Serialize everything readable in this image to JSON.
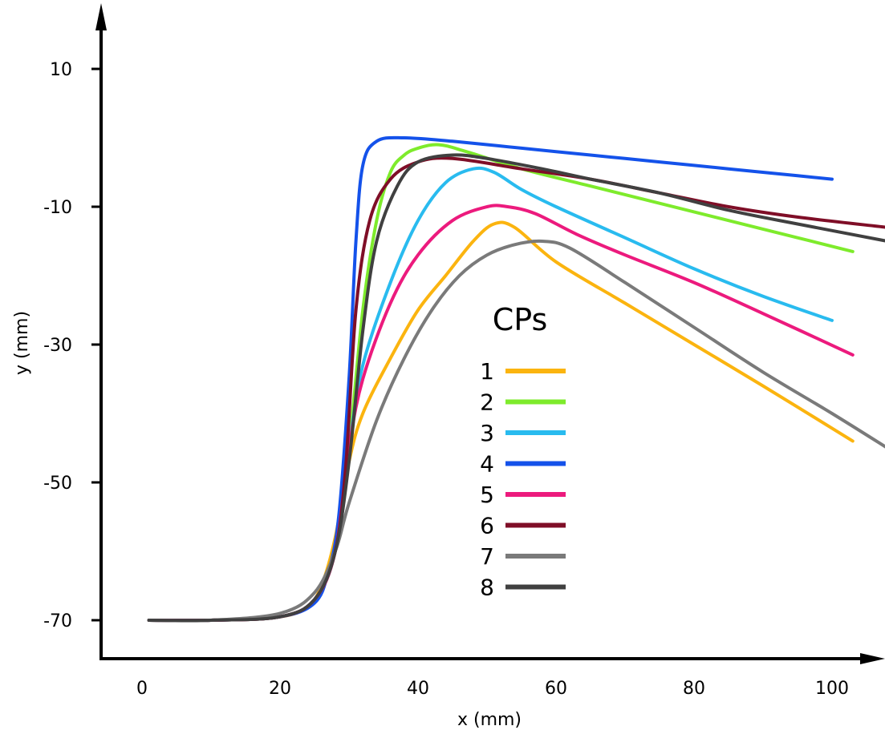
{
  "chart_data": {
    "type": "line",
    "xlabel": "x (mm)",
    "ylabel": "y (mm)",
    "xlim": [
      0,
      108
    ],
    "ylim": [
      -76,
      20
    ],
    "xticks": [
      0,
      20,
      40,
      60,
      80,
      100
    ],
    "yticks": [
      10,
      -10,
      -30,
      -50,
      -70
    ],
    "grid": false,
    "legend": {
      "title": "CPs",
      "position": "center"
    },
    "series": [
      {
        "name": "1",
        "color": "#FBB40F",
        "points": [
          [
            1,
            -70
          ],
          [
            10,
            -70
          ],
          [
            20,
            -69.5
          ],
          [
            24,
            -68
          ],
          [
            26,
            -65
          ],
          [
            28,
            -58
          ],
          [
            30,
            -47
          ],
          [
            32,
            -40
          ],
          [
            36,
            -32
          ],
          [
            40,
            -25
          ],
          [
            44,
            -20
          ],
          [
            48,
            -15
          ],
          [
            51,
            -12.5
          ],
          [
            54,
            -13
          ],
          [
            60,
            -18
          ],
          [
            70,
            -24
          ],
          [
            80,
            -30
          ],
          [
            90,
            -36
          ],
          [
            103,
            -44
          ]
        ]
      },
      {
        "name": "2",
        "color": "#7EEB2C",
        "points": [
          [
            1,
            -70
          ],
          [
            10,
            -70
          ],
          [
            20,
            -69.5
          ],
          [
            25,
            -67
          ],
          [
            28,
            -60
          ],
          [
            30,
            -45
          ],
          [
            32,
            -25
          ],
          [
            34,
            -12
          ],
          [
            36,
            -5
          ],
          [
            38,
            -2.5
          ],
          [
            40,
            -1.5
          ],
          [
            43,
            -1
          ],
          [
            47,
            -2
          ],
          [
            55,
            -4.5
          ],
          [
            65,
            -7
          ],
          [
            75,
            -9.5
          ],
          [
            85,
            -12
          ],
          [
            95,
            -14.5
          ],
          [
            103,
            -16.5
          ]
        ]
      },
      {
        "name": "3",
        "color": "#29BBEF",
        "points": [
          [
            1,
            -70
          ],
          [
            10,
            -70
          ],
          [
            20,
            -69.5
          ],
          [
            25,
            -67
          ],
          [
            28,
            -60
          ],
          [
            30,
            -45
          ],
          [
            32,
            -33
          ],
          [
            36,
            -21
          ],
          [
            40,
            -12
          ],
          [
            44,
            -6.5
          ],
          [
            48,
            -4.5
          ],
          [
            51,
            -5
          ],
          [
            55,
            -7.5
          ],
          [
            60,
            -10
          ],
          [
            70,
            -14.5
          ],
          [
            80,
            -19
          ],
          [
            90,
            -23
          ],
          [
            100,
            -26.5
          ]
        ]
      },
      {
        "name": "4",
        "color": "#1452EA",
        "points": [
          [
            1,
            -70
          ],
          [
            10,
            -70
          ],
          [
            20,
            -69.5
          ],
          [
            25,
            -67.5
          ],
          [
            27,
            -63
          ],
          [
            28.5,
            -55
          ],
          [
            30,
            -35
          ],
          [
            31,
            -15
          ],
          [
            32,
            -4
          ],
          [
            34,
            -0.5
          ],
          [
            38,
            0
          ],
          [
            45,
            -0.5
          ],
          [
            55,
            -1.5
          ],
          [
            65,
            -2.5
          ],
          [
            75,
            -3.5
          ],
          [
            85,
            -4.5
          ],
          [
            95,
            -5.5
          ],
          [
            100,
            -6
          ]
        ]
      },
      {
        "name": "5",
        "color": "#EC1A7D",
        "points": [
          [
            1,
            -70
          ],
          [
            10,
            -70
          ],
          [
            20,
            -69.5
          ],
          [
            25,
            -67
          ],
          [
            28,
            -60
          ],
          [
            30,
            -45
          ],
          [
            32,
            -35
          ],
          [
            36,
            -24
          ],
          [
            40,
            -17
          ],
          [
            45,
            -12
          ],
          [
            50,
            -10
          ],
          [
            53,
            -10
          ],
          [
            57,
            -11
          ],
          [
            63,
            -14
          ],
          [
            70,
            -17
          ],
          [
            80,
            -21
          ],
          [
            90,
            -25.5
          ],
          [
            103,
            -31.5
          ]
        ]
      },
      {
        "name": "6",
        "color": "#7F0E27",
        "points": [
          [
            1,
            -70
          ],
          [
            10,
            -70
          ],
          [
            20,
            -69.5
          ],
          [
            25,
            -67
          ],
          [
            28,
            -60
          ],
          [
            29.5,
            -48
          ],
          [
            31,
            -25
          ],
          [
            33,
            -12
          ],
          [
            36,
            -6
          ],
          [
            40,
            -3.5
          ],
          [
            45,
            -3
          ],
          [
            55,
            -4.5
          ],
          [
            65,
            -6
          ],
          [
            75,
            -8
          ],
          [
            85,
            -10
          ],
          [
            95,
            -11.5
          ],
          [
            108,
            -13
          ]
        ]
      },
      {
        "name": "7",
        "color": "#7A7A7A",
        "points": [
          [
            1,
            -70
          ],
          [
            10,
            -70
          ],
          [
            20,
            -69
          ],
          [
            25,
            -66
          ],
          [
            28,
            -60
          ],
          [
            30,
            -53
          ],
          [
            34,
            -41
          ],
          [
            38,
            -32
          ],
          [
            42,
            -25
          ],
          [
            46,
            -20
          ],
          [
            50,
            -17
          ],
          [
            54,
            -15.5
          ],
          [
            58,
            -15
          ],
          [
            62,
            -16
          ],
          [
            70,
            -21
          ],
          [
            80,
            -27.5
          ],
          [
            90,
            -34
          ],
          [
            100,
            -40
          ],
          [
            108,
            -45
          ]
        ]
      },
      {
        "name": "8",
        "color": "#404040",
        "points": [
          [
            1,
            -70
          ],
          [
            10,
            -70
          ],
          [
            20,
            -69.5
          ],
          [
            25,
            -67
          ],
          [
            28,
            -60
          ],
          [
            30,
            -47
          ],
          [
            32,
            -28
          ],
          [
            34,
            -15
          ],
          [
            37,
            -7
          ],
          [
            40,
            -3.5
          ],
          [
            45,
            -2.5
          ],
          [
            50,
            -3
          ],
          [
            58,
            -4.5
          ],
          [
            65,
            -6
          ],
          [
            75,
            -8
          ],
          [
            85,
            -10.5
          ],
          [
            95,
            -12.5
          ],
          [
            108,
            -15
          ]
        ]
      }
    ]
  }
}
